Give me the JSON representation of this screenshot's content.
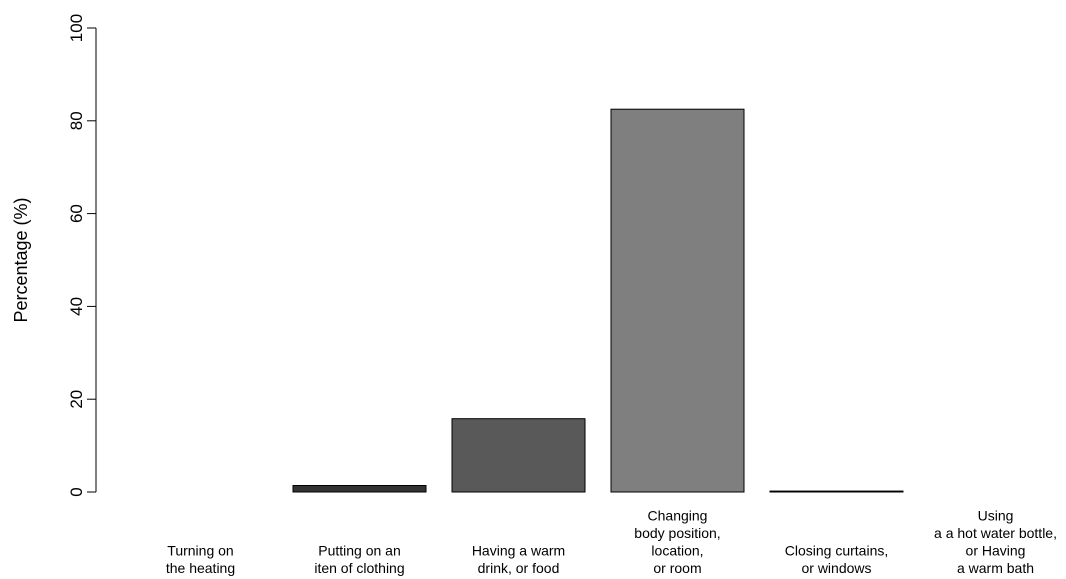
{
  "chart_data": {
    "type": "bar",
    "title": "",
    "xlabel": "",
    "ylabel": "Percentage (%)",
    "ylim": [
      0,
      100
    ],
    "yticks": [
      0,
      20,
      40,
      60,
      80,
      100
    ],
    "categories": [
      "Turning on\nthe heating",
      "Putting on an\niten of clothing",
      "Having a warm\ndrink, or food",
      "Changing\nbody position,\nlocation,\nor room",
      "Closing curtains,\nor windows",
      "Using\na a hot water bottle,\nor Having\na warm bath"
    ],
    "values": [
      0,
      1.4,
      15.8,
      82.5,
      0.2,
      0
    ],
    "colors": [
      "#111111",
      "#333333",
      "#595959",
      "#7f7f7f",
      "#a6a6a6",
      "#cccccc"
    ],
    "grid": false,
    "legend": "none"
  }
}
